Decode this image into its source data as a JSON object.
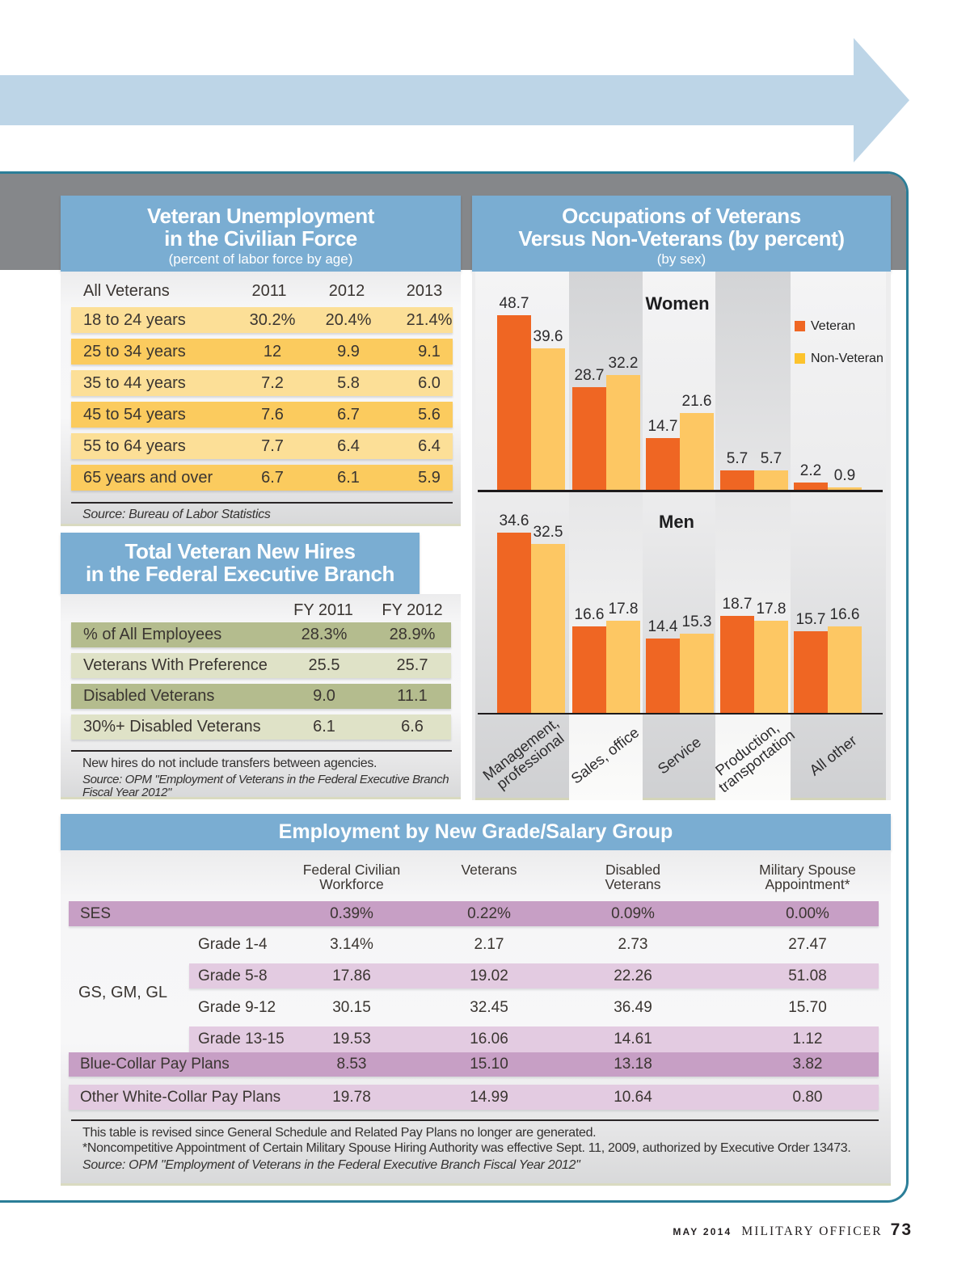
{
  "colors": {
    "panel_border_teal": "#2b7e98",
    "top_band_gray": "#85878a",
    "header_blue": "#7aadd2",
    "arrow_blue": "#bdd5e7",
    "row_yellow_light": "#fcdf97",
    "row_yellow_dark": "#fbcb5e",
    "row_green_dark": "#b4bc8e",
    "row_green_light": "#dfe2c7",
    "row_mauve": "#c79fc5",
    "row_pink": "#e3cbe1",
    "veteran_orange": "#ef6623",
    "non_veteran_yellow": "#fdc763"
  },
  "unemployment": {
    "title_line1": "Veteran Unemployment",
    "title_line2": "in the Civilian Force",
    "subtitle": "(percent of labor force by age)",
    "header_label": "All Veterans",
    "columns": [
      "2011",
      "2012",
      "2013"
    ],
    "rows": [
      {
        "label": "18 to 24 years",
        "values": [
          "30.2%",
          "20.4%",
          "21.4%"
        ]
      },
      {
        "label": "25 to 34 years",
        "values": [
          "12",
          "9.9",
          "9.1"
        ]
      },
      {
        "label": "35 to 44 years",
        "values": [
          "7.2",
          "5.8",
          "6.0"
        ]
      },
      {
        "label": "45 to 54 years",
        "values": [
          "7.6",
          "6.7",
          "5.6"
        ]
      },
      {
        "label": "55 to 64 years",
        "values": [
          "7.7",
          "6.4",
          "6.4"
        ]
      },
      {
        "label": "65 years and over",
        "values": [
          "6.7",
          "6.1",
          "5.9"
        ]
      }
    ],
    "source": "Source: Bureau of Labor Statistics"
  },
  "new_hires": {
    "title_line1": "Total Veteran New Hires",
    "title_line2": "in the Federal Executive Branch",
    "columns": [
      "FY 2011",
      "FY 2012"
    ],
    "rows": [
      {
        "label": "% of All Employees",
        "values": [
          "28.3%",
          "28.9%"
        ]
      },
      {
        "label": "Veterans With Preference",
        "values": [
          "25.5",
          "25.7"
        ]
      },
      {
        "label": "Disabled Veterans",
        "values": [
          "9.0",
          "11.1"
        ]
      },
      {
        "label": "30%+ Disabled Veterans",
        "values": [
          "6.1",
          "6.6"
        ]
      }
    ],
    "note": "New hires do not include transfers between agencies.",
    "source_line1": "Source: OPM \"Employment of Veterans in the Federal Executive Branch",
    "source_line2": "Fiscal Year 2012\""
  },
  "occupations": {
    "title_line1": "Occupations of Veterans",
    "title_line2": "Versus Non-Veterans (by percent)",
    "subtitle": "(by sex)",
    "legend": [
      {
        "label": "Veteran",
        "color": "#ef6623"
      },
      {
        "label": "Non-Veteran",
        "color": "#fcc32d"
      }
    ],
    "group_labels": [
      "Women",
      "Men"
    ],
    "categories": [
      [
        "Management,",
        "professional"
      ],
      [
        "Sales, office"
      ],
      [
        "Service"
      ],
      [
        "Production,",
        "transportation"
      ],
      [
        "All other"
      ]
    ]
  },
  "grade_salary": {
    "title": "Employment by New Grade/Salary Group",
    "column_headers": [
      [
        "Federal Civilian",
        "Workforce"
      ],
      [
        "Veterans"
      ],
      [
        "Disabled",
        "Veterans"
      ],
      [
        "Military Spouse",
        "Appointment*"
      ]
    ],
    "group_label": "GS, GM, GL",
    "rows": [
      {
        "label": "SES",
        "indent": false,
        "band": "mauve",
        "values": [
          "0.39%",
          "0.22%",
          "0.09%",
          "0.00%"
        ]
      },
      {
        "label": "Grade 1-4",
        "indent": true,
        "band": "none",
        "values": [
          "3.14%",
          "2.17",
          "2.73",
          "27.47"
        ]
      },
      {
        "label": "Grade 5-8",
        "indent": true,
        "band": "pink",
        "values": [
          "17.86",
          "19.02",
          "22.26",
          "51.08"
        ]
      },
      {
        "label": "Grade 9-12",
        "indent": true,
        "band": "none",
        "values": [
          "30.15",
          "32.45",
          "36.49",
          "15.70"
        ]
      },
      {
        "label": "Grade 13-15",
        "indent": true,
        "band": "pink",
        "values": [
          "19.53",
          "16.06",
          "14.61",
          "1.12"
        ]
      },
      {
        "label": "Blue-Collar Pay Plans",
        "indent": false,
        "band": "mauve",
        "values": [
          "8.53",
          "15.10",
          "13.18",
          "3.82"
        ]
      },
      {
        "label": "Other White-Collar Pay Plans",
        "indent": false,
        "band": "pink",
        "values": [
          "19.78",
          "14.99",
          "10.64",
          "0.80"
        ]
      }
    ],
    "footnote1": "This table is revised since General Schedule and Related Pay Plans no longer are generated.",
    "footnote2": "*Noncompetitive Appointment of Certain Military Spouse Hiring Authority was effective Sept. 11, 2009, authorized by Executive Order 13473.",
    "source": "Source: OPM \"Employment of Veterans in the Federal Executive Branch Fiscal Year 2012\""
  },
  "footer": {
    "issue": "MAY 2014",
    "magazine": "MILITARY OFFICER",
    "page_number": "73"
  },
  "chart_data": [
    {
      "type": "bar",
      "title": "Occupations of Veterans Versus Non-Veterans (by percent)",
      "subtitle": "(by sex)",
      "group": "Women",
      "categories": [
        "Management, professional",
        "Sales, office",
        "Service",
        "Production, transportation",
        "All other"
      ],
      "series": [
        {
          "name": "Veteran",
          "values": [
            48.7,
            28.7,
            14.7,
            5.7,
            2.2
          ]
        },
        {
          "name": "Non-Veteran",
          "values": [
            39.6,
            32.2,
            21.6,
            5.7,
            0.9
          ]
        }
      ],
      "ylim": [
        0,
        55
      ],
      "grid": false,
      "legend_position": "right",
      "data_labels": true
    },
    {
      "type": "bar",
      "title": "Occupations of Veterans Versus Non-Veterans (by percent)",
      "subtitle": "(by sex)",
      "group": "Men",
      "categories": [
        "Management, professional",
        "Sales, office",
        "Service",
        "Production, transportation",
        "All other"
      ],
      "series": [
        {
          "name": "Veteran",
          "values": [
            34.6,
            16.6,
            14.4,
            18.7,
            15.7
          ]
        },
        {
          "name": "Non-Veteran",
          "values": [
            32.5,
            17.8,
            15.3,
            17.8,
            16.6
          ]
        }
      ],
      "ylim": [
        0,
        40
      ],
      "grid": false,
      "legend_position": "none",
      "data_labels": true
    },
    {
      "type": "table",
      "title": "Veteran Unemployment in the Civilian Force (percent of labor force by age)",
      "columns": [
        "All Veterans",
        "2011",
        "2012",
        "2013"
      ],
      "rows": [
        [
          "18 to 24 years",
          "30.2%",
          "20.4%",
          "21.4%"
        ],
        [
          "25 to 34 years",
          "12",
          "9.9",
          "9.1"
        ],
        [
          "35 to 44 years",
          "7.2",
          "5.8",
          "6.0"
        ],
        [
          "45 to 54 years",
          "7.6",
          "6.7",
          "5.6"
        ],
        [
          "55 to 64 years",
          "7.7",
          "6.4",
          "6.4"
        ],
        [
          "65 years and over",
          "6.7",
          "6.1",
          "5.9"
        ]
      ]
    },
    {
      "type": "table",
      "title": "Total Veteran New Hires in the Federal Executive Branch",
      "columns": [
        "",
        "FY 2011",
        "FY 2012"
      ],
      "rows": [
        [
          "% of All Employees",
          "28.3%",
          "28.9%"
        ],
        [
          "Veterans With Preference",
          "25.5",
          "25.7"
        ],
        [
          "Disabled Veterans",
          "9.0",
          "11.1"
        ],
        [
          "30%+ Disabled Veterans",
          "6.1",
          "6.6"
        ]
      ]
    },
    {
      "type": "table",
      "title": "Employment by New Grade/Salary Group",
      "columns": [
        "",
        "Federal Civilian Workforce",
        "Veterans",
        "Disabled Veterans",
        "Military Spouse Appointment*"
      ],
      "rows": [
        [
          "SES",
          "0.39%",
          "0.22%",
          "0.09%",
          "0.00%"
        ],
        [
          "GS, GM, GL - Grade 1-4",
          "3.14%",
          "2.17",
          "2.73",
          "27.47"
        ],
        [
          "GS, GM, GL - Grade 5-8",
          "17.86",
          "19.02",
          "22.26",
          "51.08"
        ],
        [
          "GS, GM, GL - Grade 9-12",
          "30.15",
          "32.45",
          "36.49",
          "15.70"
        ],
        [
          "GS, GM, GL - Grade 13-15",
          "19.53",
          "16.06",
          "14.61",
          "1.12"
        ],
        [
          "Blue-Collar Pay Plans",
          "8.53",
          "15.10",
          "13.18",
          "3.82"
        ],
        [
          "Other White-Collar Pay Plans",
          "19.78",
          "14.99",
          "10.64",
          "0.80"
        ]
      ]
    }
  ]
}
